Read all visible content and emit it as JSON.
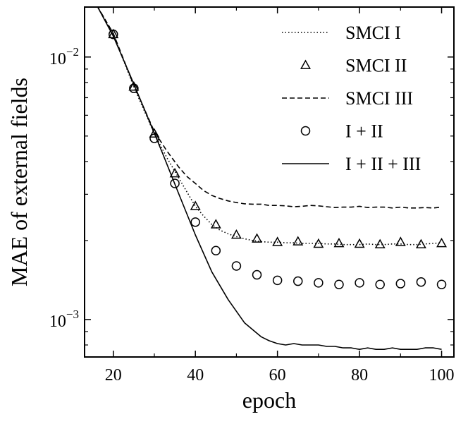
{
  "chart_data": {
    "type": "line",
    "title": "",
    "xlabel": "epoch",
    "ylabel": "MAE of external fields",
    "xlim": [
      13,
      103
    ],
    "ylim": [
      0.00072,
      0.0155
    ],
    "yscale": "log",
    "grid": false,
    "legend_position": "top-right",
    "x_ticks": [
      20,
      40,
      60,
      80,
      100
    ],
    "x_tick_labels": [
      "20",
      "40",
      "60",
      "80",
      "100"
    ],
    "y_ticks": [
      0.01,
      0.001
    ],
    "y_tick_labels": [
      {
        "base": "10",
        "exp": "−2"
      },
      {
        "base": "10",
        "exp": "−3"
      }
    ],
    "series": [
      {
        "name": "SMCI I",
        "style": "dotted",
        "marker": "none",
        "x": [
          16,
          20,
          25,
          30,
          33,
          36,
          38,
          40,
          42,
          44,
          46,
          48,
          50,
          52,
          54,
          56,
          58,
          60,
          62,
          64,
          66,
          68,
          70,
          72,
          74,
          76,
          78,
          80,
          82,
          84,
          86,
          88,
          90,
          92,
          94,
          96,
          98,
          100
        ],
        "values": [
          0.0157,
          0.0122,
          0.0077,
          0.0051,
          0.00415,
          0.00345,
          0.00305,
          0.0027,
          0.00248,
          0.0023,
          0.00219,
          0.00212,
          0.00207,
          0.00203,
          0.002,
          0.00198,
          0.00197,
          0.00197,
          0.00196,
          0.00196,
          0.00195,
          0.00195,
          0.00195,
          0.00194,
          0.00194,
          0.00193,
          0.00193,
          0.00193,
          0.00194,
          0.00193,
          0.00193,
          0.00194,
          0.00194,
          0.00193,
          0.00193,
          0.00194,
          0.00195,
          0.00196
        ]
      },
      {
        "name": "SMCI II",
        "style": "none",
        "marker": "triangle",
        "x": [
          20,
          25,
          30,
          35,
          40,
          45,
          50,
          55,
          60,
          65,
          70,
          75,
          80,
          85,
          90,
          95,
          100
        ],
        "values": [
          0.0122,
          0.0077,
          0.0051,
          0.0036,
          0.0027,
          0.0023,
          0.0021,
          0.00203,
          0.00197,
          0.00198,
          0.00194,
          0.00195,
          0.00194,
          0.00193,
          0.00197,
          0.00193,
          0.00195
        ]
      },
      {
        "name": "SMCI III",
        "style": "dashed",
        "marker": "none",
        "x": [
          16,
          20,
          25,
          30,
          33,
          36,
          38,
          40,
          42,
          44,
          46,
          48,
          50,
          52,
          54,
          56,
          58,
          60,
          62,
          64,
          66,
          68,
          70,
          72,
          74,
          76,
          78,
          80,
          82,
          84,
          86,
          88,
          90,
          92,
          94,
          96,
          98,
          100
        ],
        "values": [
          0.0157,
          0.0123,
          0.0078,
          0.0052,
          0.0044,
          0.0038,
          0.0035,
          0.0033,
          0.0031,
          0.00297,
          0.00289,
          0.00283,
          0.00279,
          0.00276,
          0.00275,
          0.00275,
          0.00272,
          0.00272,
          0.00271,
          0.00269,
          0.0027,
          0.00272,
          0.00271,
          0.00269,
          0.00267,
          0.00268,
          0.00268,
          0.0027,
          0.00267,
          0.00268,
          0.00268,
          0.00266,
          0.00268,
          0.00266,
          0.00266,
          0.00267,
          0.00266,
          0.00268
        ]
      },
      {
        "name": "I + II",
        "style": "none",
        "marker": "circle",
        "x": [
          20,
          25,
          30,
          35,
          40,
          45,
          50,
          55,
          60,
          65,
          70,
          75,
          80,
          85,
          90,
          95,
          100
        ],
        "values": [
          0.0122,
          0.0076,
          0.0049,
          0.0033,
          0.00235,
          0.00183,
          0.0016,
          0.00148,
          0.00141,
          0.0014,
          0.00138,
          0.00136,
          0.00138,
          0.00136,
          0.00137,
          0.00139,
          0.00136
        ]
      },
      {
        "name": "I + II + III",
        "style": "solid",
        "marker": "none",
        "x": [
          16,
          20,
          24,
          28,
          32,
          36,
          40,
          44,
          48,
          52,
          56,
          58,
          60,
          62,
          64,
          66,
          68,
          70,
          72,
          74,
          76,
          78,
          80,
          82,
          84,
          86,
          88,
          90,
          92,
          94,
          96,
          98,
          100
        ],
        "values": [
          0.0157,
          0.012,
          0.0086,
          0.0061,
          0.0043,
          0.003,
          0.0021,
          0.00152,
          0.00119,
          0.00097,
          0.00086,
          0.00083,
          0.00081,
          0.0008,
          0.00081,
          0.0008,
          0.0008,
          0.0008,
          0.00079,
          0.00079,
          0.00078,
          0.00078,
          0.00077,
          0.00078,
          0.00077,
          0.00077,
          0.00078,
          0.00077,
          0.00077,
          0.00077,
          0.00078,
          0.00078,
          0.00077
        ]
      }
    ]
  }
}
